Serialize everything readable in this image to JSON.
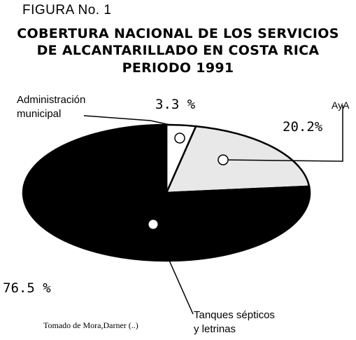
{
  "header": {
    "figure_label": "FIGURA No. 1",
    "title_line1": "COBERTURA NACIONAL DE LOS SERVICIOS",
    "title_line2": "DE ALCANTARILLADO EN COSTA RICA",
    "title_line3": "PERIODO 1991"
  },
  "chart_data": {
    "type": "pie",
    "title": "COBERTURA NACIONAL DE LOS SERVICIOS DE ALCANTARILLADO EN COSTA RICA PERIODO 1991",
    "slices": [
      {
        "name": "Administración municipal",
        "value": 3.3,
        "value_label": "3.3  %",
        "color": "#ffffff"
      },
      {
        "name": "AyA",
        "value": 20.2,
        "value_label": "20.2%",
        "color": "#e8e8e8"
      },
      {
        "name": "Tanques sépticos y letrinas",
        "value": 76.5,
        "value_label": "76.5  %",
        "color": "#000000"
      }
    ]
  },
  "labels": {
    "admin_line1": "Administración",
    "admin_line2": "municipal",
    "aya": "AyA",
    "tanques_line1": "Tanques sépticos",
    "tanques_line2": "y letrinas"
  },
  "source": "Tomado de Mora,Darner (..)"
}
